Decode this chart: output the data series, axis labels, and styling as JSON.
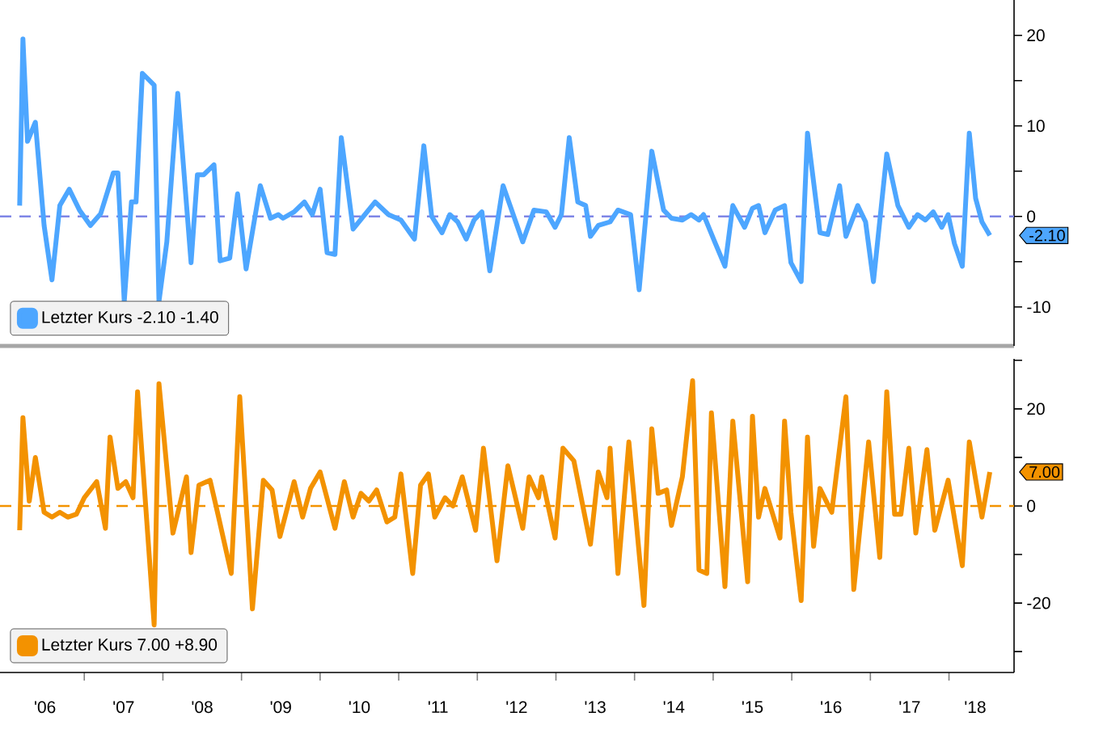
{
  "chart_data": [
    {
      "type": "line",
      "tick_labels": "y",
      "xlim": [
        "2005-12-05",
        "2018-10-29"
      ],
      "ylim": [
        -14.3,
        23.9
      ],
      "yticks": [
        20,
        {
          "value": 15,
          "label": null
        },
        10,
        {
          "value": 5,
          "label": null
        },
        0,
        {
          "value": -5,
          "label": null
        },
        -10
      ],
      "legend": "bottom left",
      "line_style": "solid",
      "ref_lines": [
        {
          "axis": "y",
          "value": 0,
          "color": "#7f86e6",
          "line_style": "dashed"
        }
      ],
      "annotations": [
        "-2.10"
      ],
      "series": [
        {
          "name": "Letzter Kurs -2.10 -1.40",
          "color": "#4da6ff",
          "x": [
            "2006-03-05",
            "2006-03-20",
            "2006-04-11",
            "2006-05-17",
            "2006-06-27",
            "2006-08-03",
            "2006-09-09",
            "2006-10-22",
            "2006-12-09",
            "2007-01-29",
            "2007-03-16",
            "2007-05-14",
            "2007-06-05",
            "2007-07-04",
            "2007-08-07",
            "2007-08-28",
            "2007-09-27",
            "2007-11-21",
            "2007-12-13",
            "2008-01-19",
            "2008-03-09",
            "2008-05-10",
            "2008-06-09",
            "2008-07-08",
            "2008-08-25",
            "2008-09-23",
            "2008-11-07",
            "2008-12-13",
            "2009-01-22",
            "2009-03-27",
            "2009-05-14",
            "2009-06-20",
            "2009-07-11",
            "2009-09-02",
            "2009-10-19",
            "2009-11-25",
            "2010-01-01",
            "2010-02-03",
            "2010-03-09",
            "2010-04-08",
            "2010-06-02",
            "2010-09-13",
            "2010-11-14",
            "2011-01-11",
            "2011-03-13",
            "2011-04-26",
            "2011-06-02",
            "2011-07-19",
            "2011-08-25",
            "2011-10-01",
            "2011-11-10",
            "2011-12-16",
            "2012-01-22",
            "2012-02-28",
            "2012-04-29",
            "2012-07-29",
            "2012-09-20",
            "2012-11-17",
            "2012-12-27",
            "2013-01-26",
            "2013-03-02",
            "2013-04-11",
            "2013-05-17",
            "2013-06-09",
            "2013-07-15",
            "2013-09-09",
            "2013-10-15",
            "2013-12-13",
            "2014-01-22",
            "2014-03-20",
            "2014-05-14",
            "2014-06-20",
            "2014-08-10",
            "2014-09-20",
            "2014-10-26",
            "2014-11-17",
            "2015-01-08",
            "2015-02-25",
            "2015-04-01",
            "2015-05-25",
            "2015-07-01",
            "2015-07-29",
            "2015-08-28",
            "2015-10-15",
            "2015-11-28",
            "2015-12-27",
            "2016-02-14",
            "2016-03-13",
            "2016-05-10",
            "2016-06-16",
            "2016-08-10",
            "2016-09-09",
            "2016-11-03",
            "2016-12-09",
            "2017-01-15",
            "2017-03-16",
            "2017-05-07",
            "2017-06-27",
            "2017-08-07",
            "2017-09-13",
            "2017-10-19",
            "2017-11-28",
            "2017-12-27",
            "2018-01-26",
            "2018-03-02",
            "2018-04-04",
            "2018-05-03",
            "2018-06-02",
            "2018-07-08"
          ],
          "values": [
            1.2,
            19.6,
            8.3,
            10.4,
            -1,
            -7,
            1.2,
            3,
            0.7,
            -1,
            0.3,
            4.8,
            4.8,
            -9.4,
            1.6,
            1.6,
            15.8,
            14.5,
            -9.4,
            -2.8,
            13.6,
            -5.1,
            4.6,
            4.6,
            5.7,
            -4.9,
            -4.6,
            2.5,
            -5.8,
            3.4,
            -0.2,
            0.2,
            -0.2,
            0.5,
            1.6,
            0.2,
            3,
            -4,
            -4.2,
            8.7,
            -1.4,
            1.6,
            0.2,
            -0.4,
            -2.5,
            7.8,
            0,
            -1.8,
            0.2,
            -0.6,
            -2.5,
            -0.4,
            0.5,
            -6,
            3.4,
            -2.8,
            0.7,
            0.5,
            -1.2,
            0.2,
            8.7,
            1.6,
            1.2,
            -2.2,
            -1,
            -0.6,
            0.7,
            0.2,
            -8.1,
            7.2,
            0.7,
            -0.2,
            -0.4,
            0.2,
            -0.4,
            0.2,
            -2.8,
            -5.5,
            1.2,
            -1.2,
            0.9,
            1.2,
            -1.8,
            0.7,
            1.2,
            -5.1,
            -7.2,
            9.2,
            -1.8,
            -2,
            3.4,
            -2.2,
            1.2,
            -0.6,
            -7.2,
            6.9,
            1.2,
            -1.2,
            0.2,
            -0.4,
            0.5,
            -1.2,
            0.2,
            -3,
            -5.5,
            9.2,
            2,
            -0.6,
            -2.1
          ]
        }
      ]
    },
    {
      "type": "line",
      "xlim": [
        "2005-12-05",
        "2018-10-29"
      ],
      "ylim": [
        -34.3,
        30.3
      ],
      "xticks": [
        {
          "value": "2006-07",
          "label": "'06"
        },
        {
          "value": "2007-07",
          "label": "'07"
        },
        {
          "value": "2008-07",
          "label": "'08"
        },
        {
          "value": "2009-07",
          "label": "'09"
        },
        {
          "value": "2010-07",
          "label": "'10"
        },
        {
          "value": "2011-07",
          "label": "'11"
        },
        {
          "value": "2012-07",
          "label": "'12"
        },
        {
          "value": "2013-07",
          "label": "'13"
        },
        {
          "value": "2014-07",
          "label": "'14"
        },
        {
          "value": "2015-07",
          "label": "'15"
        },
        {
          "value": "2016-07",
          "label": "'16"
        },
        {
          "value": "2017-07",
          "label": "'17"
        },
        {
          "value": "2018-05",
          "label": "'18"
        },
        {
          "value": "2007",
          "label": null
        },
        {
          "value": "2008",
          "label": null
        },
        {
          "value": "2009",
          "label": null
        },
        {
          "value": "2010",
          "label": null
        },
        {
          "value": "2011",
          "label": null
        },
        {
          "value": "2012",
          "label": null
        },
        {
          "value": "2013",
          "label": null
        },
        {
          "value": "2014",
          "label": null
        },
        {
          "value": "2015",
          "label": null
        },
        {
          "value": "2016",
          "label": null
        },
        {
          "value": "2017",
          "label": null
        },
        {
          "value": "2018",
          "label": null
        }
      ],
      "yticks": [
        {
          "value": 30,
          "label": null
        },
        20,
        {
          "value": 10,
          "label": null
        },
        0,
        {
          "value": -10,
          "label": null
        },
        -20,
        {
          "value": -30,
          "label": null
        }
      ],
      "legend": "bottom left",
      "line_style": "solid",
      "ref_lines": [
        {
          "axis": "y",
          "value": 0,
          "color": "#f39200",
          "line_style": "dashed"
        }
      ],
      "annotations": [
        "7.00"
      ],
      "series": [
        {
          "name": "Letzter Kurs 7.00 +8.90",
          "color": "#f39200",
          "x": [
            "2006-03-05",
            "2006-03-20",
            "2006-04-19",
            "2006-05-17",
            "2006-06-27",
            "2006-08-03",
            "2006-09-09",
            "2006-10-15",
            "2006-11-25",
            "2007-01-01",
            "2007-02-28",
            "2007-04-08",
            "2007-04-29",
            "2007-06-05",
            "2007-07-11",
            "2007-08-14",
            "2007-09-05",
            "2007-11-21",
            "2007-12-13",
            "2008-02-17",
            "2008-04-19",
            "2008-05-10",
            "2008-06-16",
            "2008-08-07",
            "2008-09-16",
            "2008-11-14",
            "2008-12-23",
            "2009-02-21",
            "2009-04-11",
            "2009-05-21",
            "2009-06-27",
            "2009-09-02",
            "2009-10-11",
            "2009-11-17",
            "2010-01-01",
            "2010-03-09",
            "2010-04-22",
            "2010-06-02",
            "2010-07-08",
            "2010-08-14",
            "2010-09-20",
            "2010-11-07",
            "2010-12-13",
            "2011-01-11",
            "2011-03-05",
            "2011-04-11",
            "2011-05-17",
            "2011-06-16",
            "2011-08-03",
            "2011-09-09",
            "2011-10-22",
            "2011-12-23",
            "2012-01-29",
            "2012-04-01",
            "2012-05-21",
            "2012-07-29",
            "2012-08-28",
            "2012-10-11",
            "2012-10-26",
            "2012-12-27",
            "2013-02-03",
            "2013-03-23",
            "2013-06-09",
            "2013-07-15",
            "2013-08-25",
            "2013-09-09",
            "2013-10-15",
            "2013-12-05",
            "2014-02-14",
            "2014-03-20",
            "2014-04-19",
            "2014-05-28",
            "2014-06-20",
            "2014-08-10",
            "2014-09-27",
            "2014-10-26",
            "2014-12-02",
            "2014-12-23",
            "2015-02-25",
            "2015-04-01",
            "2015-06-09",
            "2015-07-01",
            "2015-07-29",
            "2015-08-28",
            "2015-11-07",
            "2015-11-28",
            "2015-12-27",
            "2016-02-14",
            "2016-03-13",
            "2016-04-11",
            "2016-05-10",
            "2016-07-04",
            "2016-09-09",
            "2016-10-15",
            "2016-12-23",
            "2017-02-14",
            "2017-03-16",
            "2017-04-22",
            "2017-05-21",
            "2017-06-27",
            "2017-07-29",
            "2017-09-20",
            "2017-10-26",
            "2017-12-27",
            "2018-03-02",
            "2018-04-04",
            "2018-06-02",
            "2018-07-08"
          ],
          "values": [
            -5,
            18.2,
            1,
            10,
            -1.3,
            -2.3,
            -1.3,
            -2.3,
            -1.7,
            1.7,
            5,
            -4.6,
            14.2,
            3.6,
            5,
            1.7,
            23.5,
            -24.5,
            25.2,
            -5.6,
            6,
            -9.6,
            4.3,
            5.3,
            -2.3,
            -13.9,
            22.5,
            -21.2,
            5.3,
            3.3,
            -6.3,
            5,
            -2.3,
            3.6,
            7,
            -4.6,
            5,
            -2.3,
            2.6,
            1,
            3.3,
            -3.3,
            -2.3,
            6.6,
            -13.9,
            4.3,
            6.6,
            -2.3,
            1.7,
            0,
            6,
            -5,
            11.9,
            -11.3,
            8.3,
            -4.6,
            6,
            1.7,
            6,
            -6.6,
            11.9,
            9.3,
            -7.9,
            7,
            1.7,
            11.9,
            -13.9,
            13.2,
            -20.5,
            15.9,
            2.6,
            3.3,
            -4,
            6,
            25.8,
            -13.2,
            -13.9,
            19.2,
            -16.6,
            17.5,
            -15.6,
            18.5,
            -2.3,
            3.6,
            -6.6,
            17.5,
            -1.3,
            -19.5,
            14.2,
            -8.3,
            3.6,
            -1.3,
            22.5,
            -17.2,
            13.2,
            -10.6,
            23.5,
            -1.7,
            -1.7,
            11.9,
            -5.6,
            11.6,
            -5,
            5.3,
            -12.3,
            13.2,
            -2.3,
            7
          ]
        }
      ]
    }
  ]
}
